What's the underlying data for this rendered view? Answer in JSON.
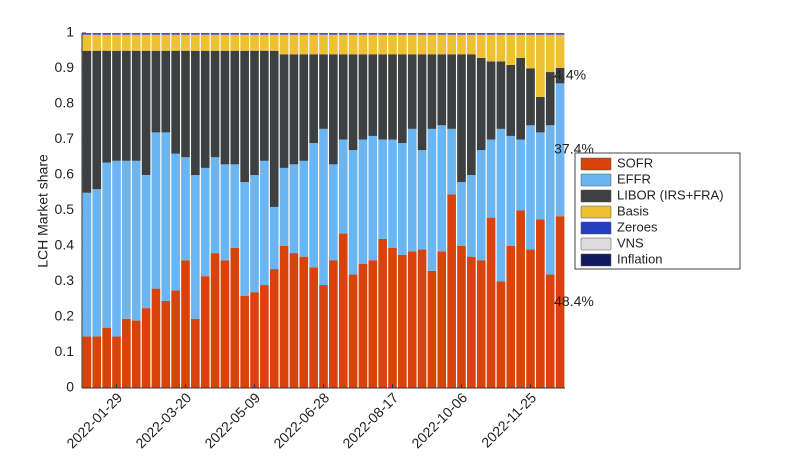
{
  "chart_data": {
    "type": "stacked_bar",
    "y_label": "LCH Market share",
    "categories": [
      null,
      null,
      null,
      "2022-01-29",
      null,
      null,
      null,
      null,
      null,
      null,
      "2022-03-20",
      null,
      null,
      null,
      null,
      null,
      null,
      "2022-05-09",
      null,
      null,
      null,
      null,
      null,
      null,
      "2022-06-28",
      null,
      null,
      null,
      null,
      null,
      null,
      "2022-08-17",
      null,
      null,
      null,
      null,
      null,
      null,
      "2022-10-06",
      null,
      null,
      null,
      null,
      null,
      null,
      "2022-11-25",
      null,
      null,
      null
    ],
    "ylim": [
      0,
      1
    ],
    "yticks": [
      0,
      0.1,
      0.2,
      0.3,
      0.4,
      0.5,
      0.6,
      0.7,
      0.8,
      0.9,
      1
    ],
    "series": [
      {
        "name": "SOFR",
        "color": "#d9420b",
        "values": [
          0.145,
          0.145,
          0.17,
          0.145,
          0.195,
          0.19,
          0.225,
          0.28,
          0.245,
          0.275,
          0.36,
          0.195,
          0.315,
          0.38,
          0.36,
          0.395,
          0.26,
          0.27,
          0.29,
          0.335,
          0.4,
          0.38,
          0.37,
          0.34,
          0.29,
          0.36,
          0.435,
          0.32,
          0.35,
          0.36,
          0.42,
          0.395,
          0.375,
          0.385,
          0.39,
          0.33,
          0.385,
          0.545,
          0.4,
          0.37,
          0.36,
          0.48,
          0.3,
          0.4,
          0.5,
          0.39,
          0.475,
          0.32,
          0.484
        ],
        "value_labels": [
          null,
          null,
          null,
          null,
          null,
          null,
          null,
          null,
          null,
          null,
          null,
          null,
          null,
          null,
          null,
          null,
          null,
          null,
          null,
          null,
          null,
          null,
          null,
          null,
          null,
          null,
          null,
          null,
          null,
          null,
          null,
          null,
          null,
          null,
          null,
          null,
          null,
          null,
          null,
          null,
          null,
          null,
          null,
          null,
          null,
          null,
          null,
          null,
          "48.4%"
        ]
      },
      {
        "name": "EFFR",
        "color": "#6bb6f2",
        "values": [
          0.405,
          0.415,
          0.465,
          0.495,
          0.445,
          0.45,
          0.375,
          0.44,
          0.475,
          0.385,
          0.29,
          0.405,
          0.305,
          0.27,
          0.27,
          0.235,
          0.32,
          0.33,
          0.35,
          0.175,
          0.22,
          0.25,
          0.27,
          0.35,
          0.44,
          0.27,
          0.265,
          0.35,
          0.35,
          0.35,
          0.28,
          0.305,
          0.315,
          0.345,
          0.28,
          0.4,
          0.355,
          0.185,
          0.18,
          0.23,
          0.31,
          0.22,
          0.43,
          0.31,
          0.2,
          0.35,
          0.245,
          0.42,
          0.374
        ],
        "value_labels": [
          null,
          null,
          null,
          null,
          null,
          null,
          null,
          null,
          null,
          null,
          null,
          null,
          null,
          null,
          null,
          null,
          null,
          null,
          null,
          null,
          null,
          null,
          null,
          null,
          null,
          null,
          null,
          null,
          null,
          null,
          null,
          null,
          null,
          null,
          null,
          null,
          null,
          null,
          null,
          null,
          null,
          null,
          null,
          null,
          null,
          null,
          null,
          null,
          "37.4%"
        ]
      },
      {
        "name": "LIBOR (IRS+FRA)",
        "color": "#3d3f40",
        "values": [
          0.4,
          0.39,
          0.315,
          0.31,
          0.31,
          0.31,
          0.35,
          0.23,
          0.23,
          0.29,
          0.3,
          0.35,
          0.33,
          0.3,
          0.32,
          0.32,
          0.37,
          0.35,
          0.31,
          0.44,
          0.32,
          0.31,
          0.3,
          0.25,
          0.21,
          0.31,
          0.24,
          0.27,
          0.24,
          0.23,
          0.24,
          0.24,
          0.25,
          0.21,
          0.27,
          0.21,
          0.2,
          0.21,
          0.36,
          0.34,
          0.26,
          0.22,
          0.19,
          0.2,
          0.23,
          0.16,
          0.1,
          0.15,
          0.044
        ],
        "value_labels": [
          null,
          null,
          null,
          null,
          null,
          null,
          null,
          null,
          null,
          null,
          null,
          null,
          null,
          null,
          null,
          null,
          null,
          null,
          null,
          null,
          null,
          null,
          null,
          null,
          null,
          null,
          null,
          null,
          null,
          null,
          null,
          null,
          null,
          null,
          null,
          null,
          null,
          null,
          null,
          null,
          null,
          null,
          null,
          null,
          null,
          null,
          null,
          null,
          "4.4%"
        ]
      },
      {
        "name": "Basis",
        "color": "#eec132",
        "values": [
          0.045,
          0.045,
          0.045,
          0.045,
          0.045,
          0.045,
          0.045,
          0.045,
          0.045,
          0.045,
          0.045,
          0.045,
          0.045,
          0.045,
          0.045,
          0.045,
          0.045,
          0.045,
          0.045,
          0.045,
          0.055,
          0.055,
          0.055,
          0.055,
          0.055,
          0.055,
          0.055,
          0.055,
          0.055,
          0.055,
          0.055,
          0.055,
          0.055,
          0.055,
          0.055,
          0.055,
          0.055,
          0.055,
          0.055,
          0.055,
          0.065,
          0.075,
          0.075,
          0.085,
          0.065,
          0.095,
          0.175,
          0.105,
          0.093
        ]
      },
      {
        "name": "Zeroes",
        "color": "#2440c0",
        "values": [
          0.002,
          0.002,
          0.002,
          0.002,
          0.002,
          0.002,
          0.002,
          0.002,
          0.002,
          0.002,
          0.002,
          0.002,
          0.002,
          0.002,
          0.002,
          0.002,
          0.002,
          0.002,
          0.002,
          0.002,
          0.002,
          0.002,
          0.002,
          0.002,
          0.002,
          0.002,
          0.002,
          0.002,
          0.002,
          0.002,
          0.002,
          0.002,
          0.002,
          0.002,
          0.002,
          0.002,
          0.002,
          0.002,
          0.002,
          0.002,
          0.002,
          0.002,
          0.002,
          0.002,
          0.002,
          0.002,
          0.002,
          0.002,
          0.002
        ]
      },
      {
        "name": "VNS",
        "color": "#dcdcdc",
        "values": [
          0.001,
          0.001,
          0.001,
          0.001,
          0.001,
          0.001,
          0.001,
          0.001,
          0.001,
          0.001,
          0.001,
          0.001,
          0.001,
          0.001,
          0.001,
          0.001,
          0.001,
          0.001,
          0.001,
          0.001,
          0.001,
          0.001,
          0.001,
          0.001,
          0.001,
          0.001,
          0.001,
          0.001,
          0.001,
          0.001,
          0.001,
          0.001,
          0.001,
          0.001,
          0.001,
          0.001,
          0.001,
          0.001,
          0.001,
          0.001,
          0.001,
          0.001,
          0.001,
          0.001,
          0.001,
          0.001,
          0.001,
          0.001,
          0.001
        ]
      },
      {
        "name": "Inflation",
        "color": "#101a5c",
        "values": [
          0.002,
          0.002,
          0.002,
          0.002,
          0.002,
          0.002,
          0.002,
          0.002,
          0.002,
          0.002,
          0.002,
          0.002,
          0.002,
          0.002,
          0.002,
          0.002,
          0.002,
          0.002,
          0.002,
          0.002,
          0.002,
          0.002,
          0.002,
          0.002,
          0.002,
          0.002,
          0.002,
          0.002,
          0.002,
          0.002,
          0.002,
          0.002,
          0.002,
          0.002,
          0.002,
          0.002,
          0.002,
          0.002,
          0.002,
          0.002,
          0.002,
          0.002,
          0.002,
          0.002,
          0.002,
          0.002,
          0.002,
          0.002,
          0.002
        ]
      }
    ]
  }
}
